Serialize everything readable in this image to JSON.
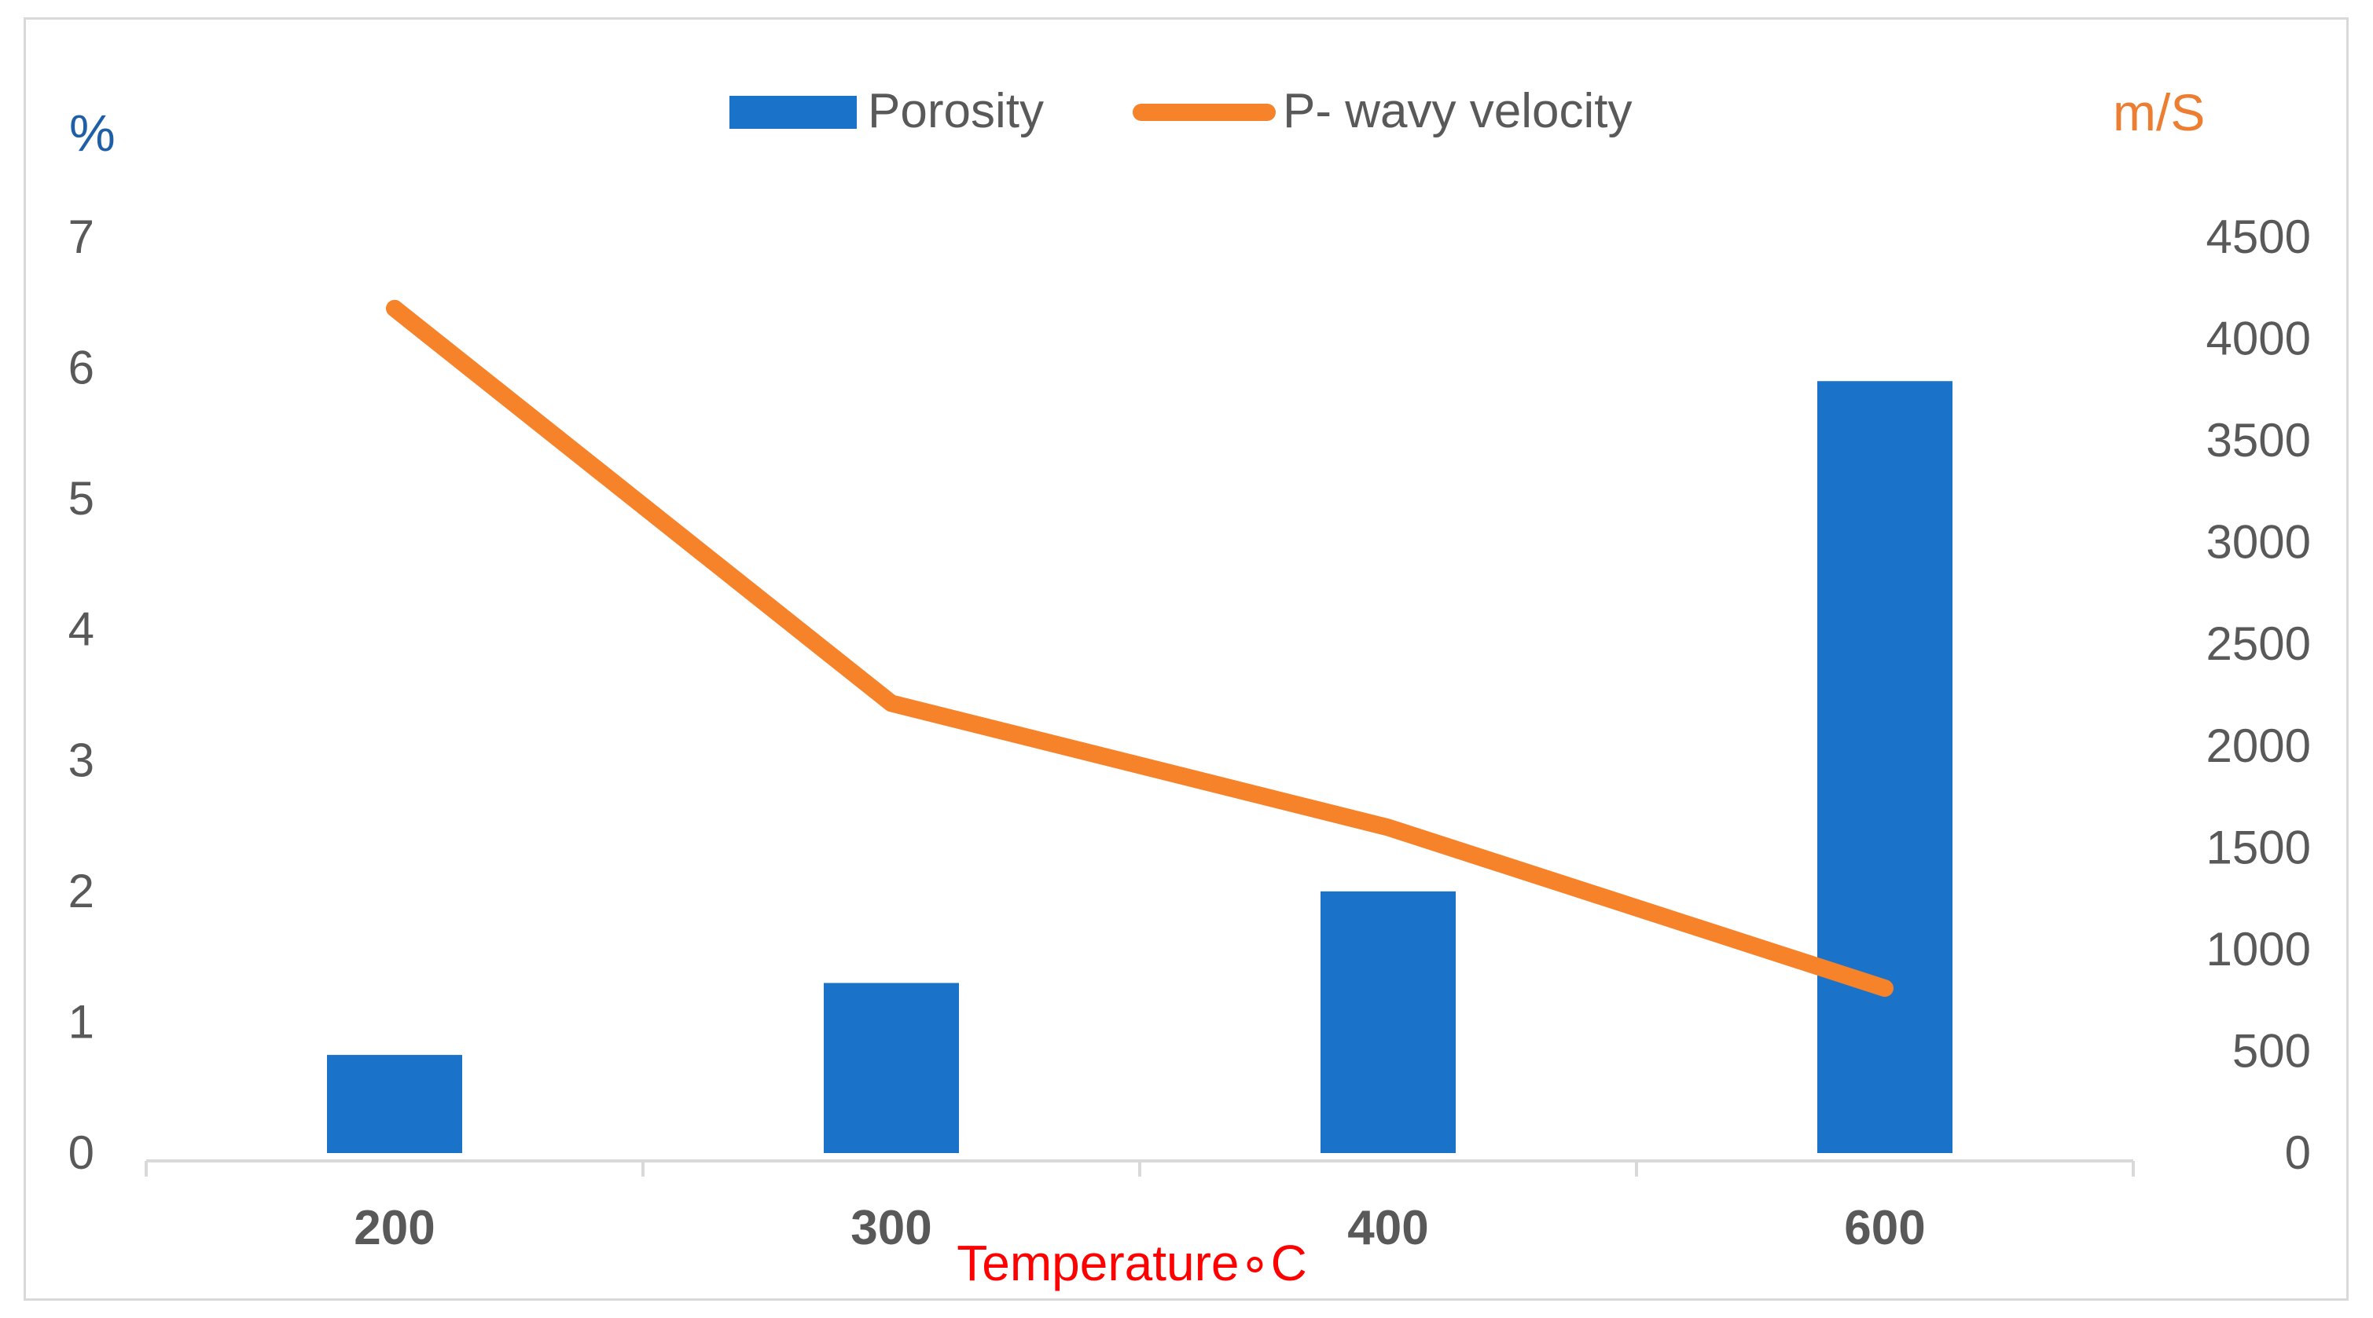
{
  "chart_data": {
    "type": "bar+line",
    "categories": [
      "200",
      "300",
      "400",
      "600"
    ],
    "series": [
      {
        "name": "Porosity",
        "kind": "bar",
        "axis": "left",
        "values": [
          0.75,
          1.3,
          2.0,
          5.9
        ],
        "color": "#1a73c8"
      },
      {
        "name": "P- wavy velocity",
        "kind": "line",
        "axis": "right",
        "values": [
          4150,
          2210,
          1600,
          810
        ],
        "color": "#f6822a"
      }
    ],
    "left_axis": {
      "unit": "%",
      "min": 0,
      "max": 7,
      "ticks": [
        "0",
        "1",
        "2",
        "3",
        "4",
        "5",
        "6",
        "7"
      ]
    },
    "right_axis": {
      "unit": "m/S",
      "min": 0,
      "max": 4500,
      "ticks": [
        "0",
        "500",
        "1000",
        "1500",
        "2000",
        "2500",
        "3000",
        "3500",
        "4000",
        "4500"
      ]
    },
    "xlabel": "Temperature∘C",
    "legend_position": "top-center",
    "grid": false
  }
}
